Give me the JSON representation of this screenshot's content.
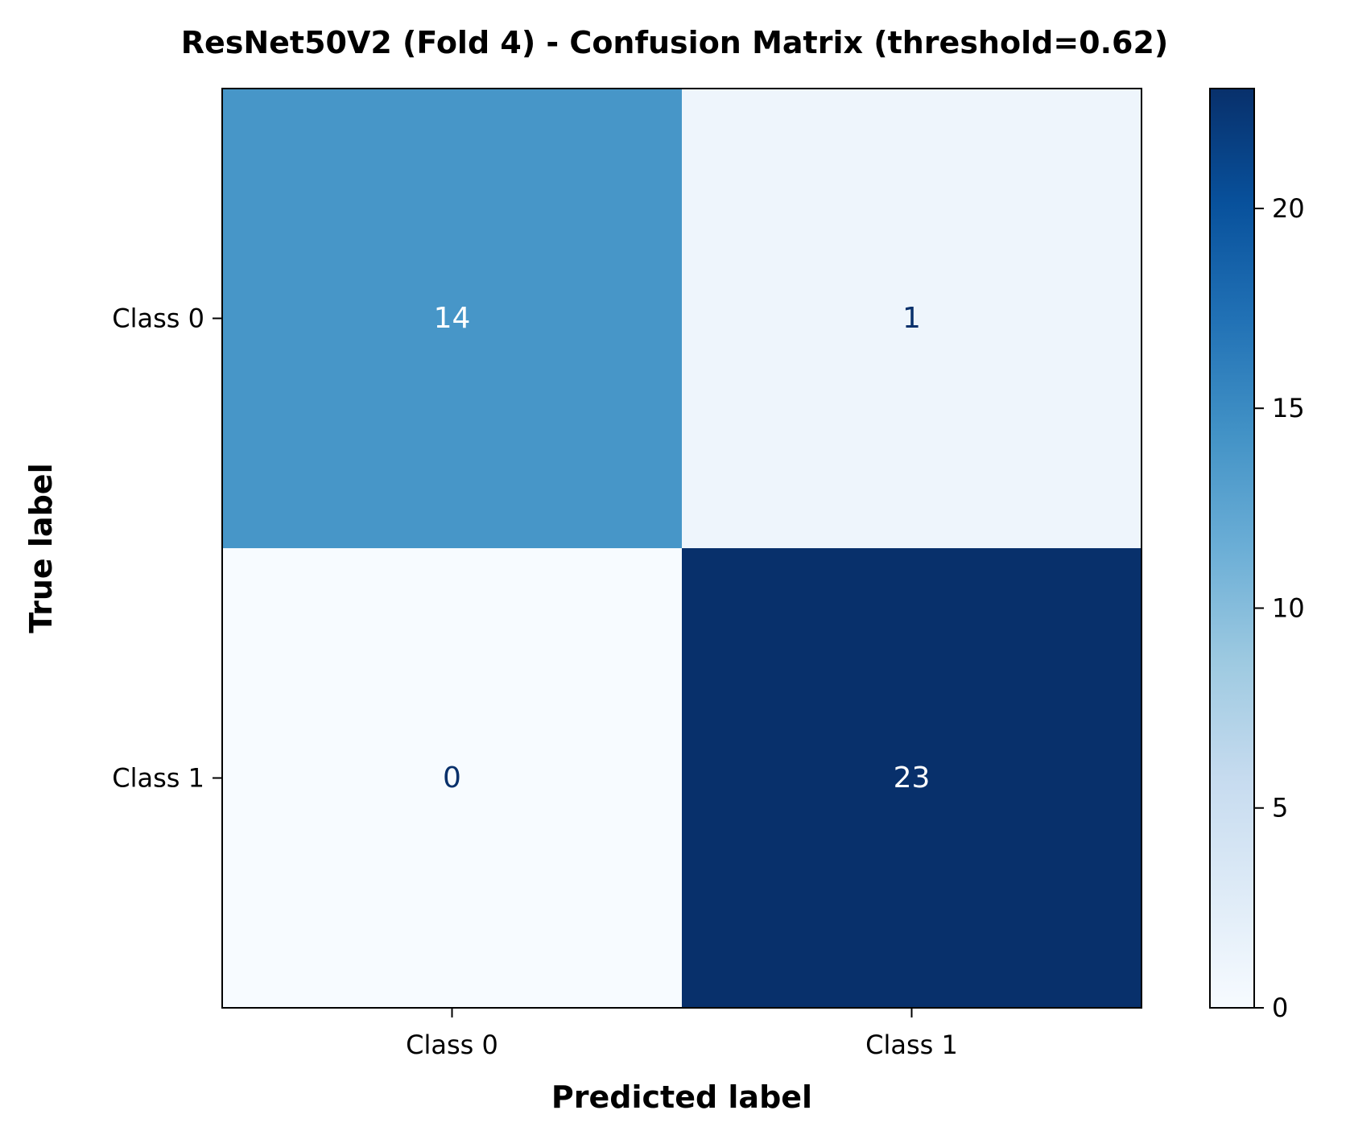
{
  "chart_data": {
    "type": "heatmap",
    "title": "ResNet50V2 (Fold 4) - Confusion Matrix (threshold=0.62)",
    "xlabel": "Predicted label",
    "ylabel": "True label",
    "x_categories": [
      "Class 0",
      "Class 1"
    ],
    "y_categories": [
      "Class 0",
      "Class 1"
    ],
    "values": [
      [
        14,
        1
      ],
      [
        0,
        23
      ]
    ],
    "colormap": "Blues",
    "colorbar": {
      "min": 0,
      "max": 23,
      "ticks": [
        0,
        5,
        10,
        15,
        20
      ],
      "tick_labels": [
        "0",
        "5",
        "10",
        "15",
        "20"
      ]
    },
    "grid": false
  }
}
